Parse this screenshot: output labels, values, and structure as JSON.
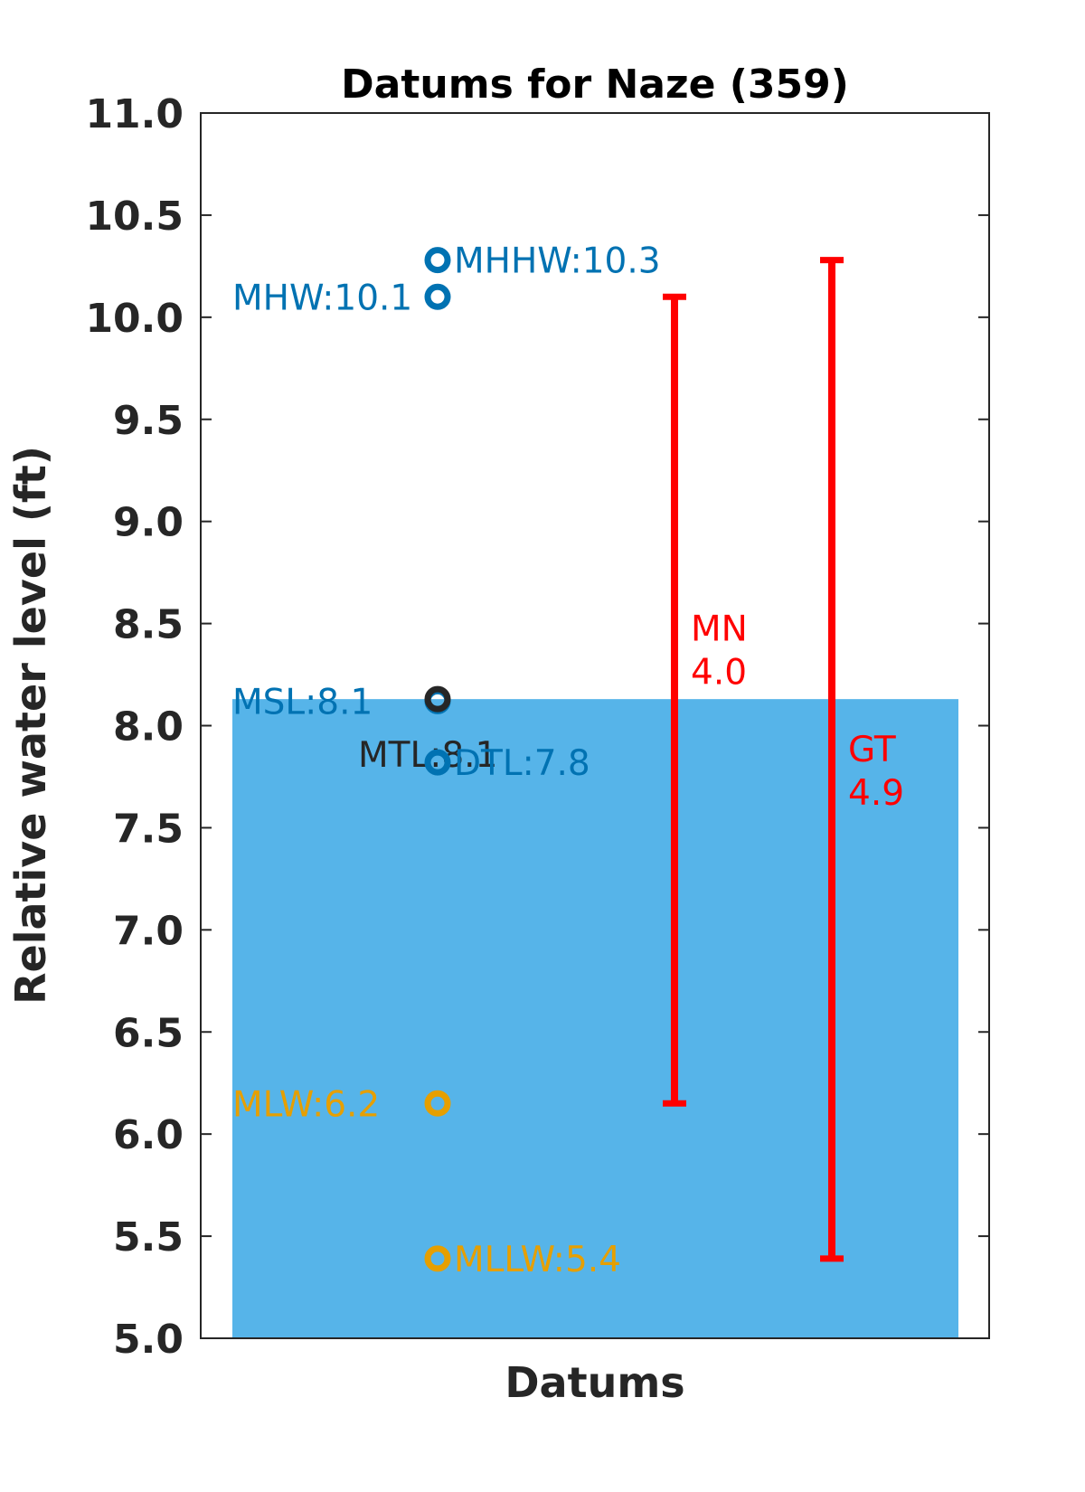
{
  "chart_data": {
    "type": "scatter",
    "title": "Datums for Naze (359)",
    "xlabel": "Datums",
    "ylabel": "Relative water level (ft)",
    "ylim": [
      5.0,
      11.0
    ],
    "yticks": [
      "5.0",
      "5.5",
      "6.0",
      "6.5",
      "7.0",
      "7.5",
      "8.0",
      "8.5",
      "9.0",
      "9.5",
      "10.0",
      "10.5",
      "11.0"
    ],
    "grid": false,
    "background_fill": {
      "from": 5.0,
      "to": 8.13,
      "color": "#56b4e9"
    },
    "datums": [
      {
        "label": "MHHW:10.3",
        "value": 10.28,
        "color": "#0072b2",
        "label_side": "right"
      },
      {
        "label": "MHW:10.1",
        "value": 10.1,
        "color": "#0072b2",
        "label_side": "left"
      },
      {
        "label": "MSL:8.1",
        "value": 8.12,
        "color": "#0072b2",
        "label_side": "left"
      },
      {
        "label": "MTL:8.1",
        "value": 8.13,
        "color": "#262626",
        "label_side": "left"
      },
      {
        "label": "DTL:7.8",
        "value": 7.82,
        "color": "#0072b2",
        "label_side": "right"
      },
      {
        "label": "MLW:6.2",
        "value": 6.15,
        "color": "#e69f00",
        "label_side": "left"
      },
      {
        "label": "MLLW:5.4",
        "value": 5.39,
        "color": "#e69f00",
        "label_side": "right"
      }
    ],
    "ranges": [
      {
        "name": "MN",
        "value_label": "4.0",
        "from": 6.15,
        "to": 10.1,
        "color": "#ff0000"
      },
      {
        "name": "GT",
        "value_label": "4.9",
        "from": 5.39,
        "to": 10.28,
        "color": "#ff0000"
      }
    ]
  }
}
